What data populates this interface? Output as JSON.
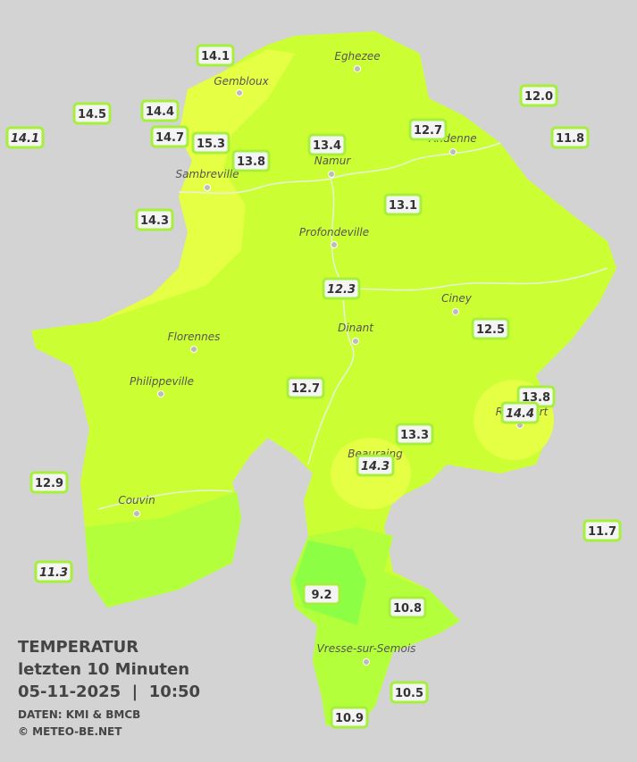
{
  "header": {
    "title": "TEMPERATUR",
    "subtitle": "letzten 10 Minuten",
    "datetime": "05-11-2025  |  10:50",
    "source": "DATEN: KMI & BMCB",
    "copyright": "© METEO-BE.NET"
  },
  "cities": [
    "Eghezee",
    "Gembloux",
    "Andenne",
    "Namur",
    "Sambreville",
    "Profondeville",
    "Ciney",
    "Dinant",
    "Florennes",
    "Philippeville",
    "Rochefort",
    "Beauraing",
    "Couvin",
    "Vresse-sur-Semois"
  ],
  "stations": [
    "14.1",
    "14.5",
    "14.4",
    "14.1",
    "14.7",
    "15.3",
    "13.8",
    "13.4",
    "12.7",
    "12.0",
    "11.8",
    "14.3",
    "13.1",
    "12.3",
    "12.5",
    "12.7",
    "13.8",
    "14.4",
    "13.3",
    "14.3",
    "12.9",
    "11.7",
    "11.3",
    "9.2",
    "10.8",
    "10.5",
    "10.9"
  ]
}
